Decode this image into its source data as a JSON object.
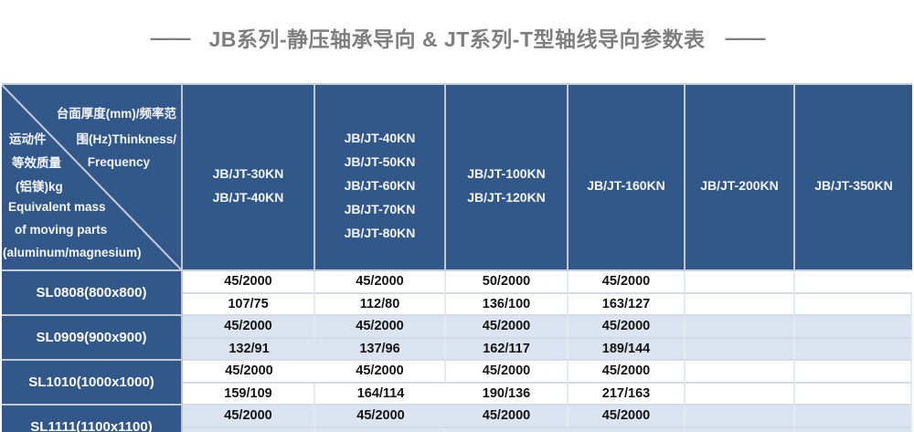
{
  "title": {
    "dash_left": "——",
    "text": "JB系列-静压轴承导向 & JT系列-T型轴线导向参数表",
    "dash_right": "——"
  },
  "colors": {
    "header_blue": "#32588A",
    "band_light_blue": "#DBE5F1",
    "band_white": "#FFFFFF",
    "title_gray": "#7F7F7F"
  },
  "table": {
    "corner": {
      "top_right_line1": "台面厚度(mm)/频率范",
      "left_line1": "运动件",
      "top_right_line2": "围(Hz)Thinkness/",
      "left_line2": "等效质量",
      "top_right_line3": "Frequency",
      "left_line3": "(铝镁)kg",
      "left_line4": "Equivalent mass",
      "left_line5": "of moving parts",
      "left_line6": "(aluminum/magnesium)"
    },
    "columns": [
      {
        "lines": [
          "JB/JT-30KN",
          "JB/JT-40KN"
        ]
      },
      {
        "lines": [
          "JB/JT-40KN",
          "JB/JT-50KN",
          "JB/JT-60KN",
          "JB/JT-70KN",
          "JB/JT-80KN"
        ]
      },
      {
        "lines": [
          "JB/JT-100KN",
          "JB/JT-120KN"
        ]
      },
      {
        "lines": [
          "JB/JT-160KN"
        ]
      },
      {
        "lines": [
          "JB/JT-200KN"
        ]
      },
      {
        "lines": [
          "JB/JT-350KN"
        ]
      }
    ],
    "rows": [
      {
        "label": "SL0808(800x800)",
        "row1": [
          "45/2000",
          "45/2000",
          "50/2000",
          "45/2000",
          "",
          ""
        ],
        "row2": [
          "107/75",
          "112/80",
          "136/100",
          "163/127",
          "",
          ""
        ]
      },
      {
        "label": "SL0909(900x900)",
        "row1": [
          "45/2000",
          "45/2000",
          "45/2000",
          "45/2000",
          "",
          ""
        ],
        "row2": [
          "132/91",
          "137/96",
          "162/117",
          "189/144",
          "",
          ""
        ]
      },
      {
        "label": "SL1010(1000x1000)",
        "row1": [
          "45/2000",
          "45/2000",
          "45/2000",
          "45/2000",
          "",
          ""
        ],
        "row2": [
          "159/109",
          "164/114",
          "190/136",
          "217/163",
          "",
          ""
        ]
      },
      {
        "label": "SL1111(1100x1100)",
        "row1": [
          "45/2000",
          "45/2000",
          "45/2000",
          "45/2000",
          "",
          ""
        ],
        "row2": [
          "",
          "",
          "",
          "",
          "",
          ""
        ]
      }
    ]
  }
}
